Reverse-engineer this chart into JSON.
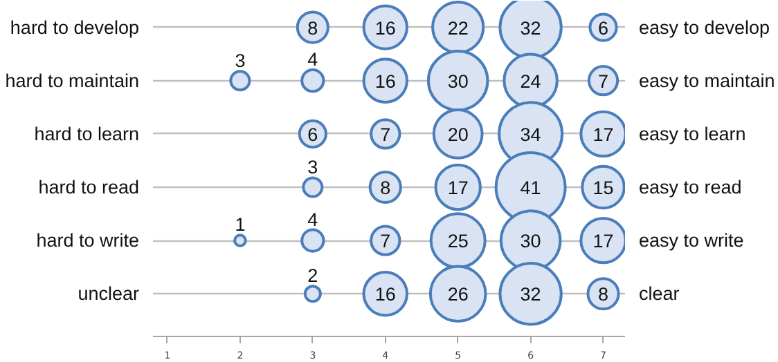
{
  "chart_data": {
    "type": "bubble",
    "orientation": "horizontal",
    "categories": [
      "hard to develop",
      "hard to maintain",
      "hard to learn",
      "hard to read",
      "hard to write",
      "unclear"
    ],
    "y2_categories": [
      "easy to develop",
      "easy to maintain",
      "easy to learn",
      "easy to read",
      "easy to write",
      "clear"
    ],
    "xlim": [
      0.8,
      7.3
    ],
    "xticks": [
      1,
      2,
      3,
      4,
      5,
      6,
      7
    ],
    "grid": "y",
    "color": "#dae3f3",
    "series": [
      {
        "values": [
          null,
          2,
          null,
          null,
          2,
          null
        ],
        "sizes": [
          null,
          3,
          null,
          null,
          1,
          null
        ],
        "value_labels": [
          null,
          "3",
          null,
          null,
          "1",
          null
        ]
      },
      {
        "values": [
          3,
          3,
          3,
          3,
          3,
          3
        ],
        "sizes": [
          8,
          4,
          6,
          3,
          4,
          2
        ],
        "value_labels": [
          "8",
          "4",
          "6",
          "3",
          "4",
          "2"
        ]
      },
      {
        "values": [
          4,
          4,
          4,
          4,
          4,
          4
        ],
        "sizes": [
          16,
          16,
          7,
          8,
          7,
          16
        ],
        "value_labels": [
          "16",
          "16",
          "7",
          "8",
          "7",
          "16"
        ]
      },
      {
        "values": [
          5,
          5,
          5,
          5,
          5,
          5
        ],
        "sizes": [
          22,
          30,
          20,
          17,
          25,
          26
        ],
        "value_labels": [
          "22",
          "30",
          "20",
          "17",
          "25",
          "26"
        ]
      },
      {
        "values": [
          6,
          6,
          6,
          6,
          6,
          6
        ],
        "sizes": [
          32,
          24,
          34,
          41,
          30,
          32
        ],
        "value_labels": [
          "32",
          "24",
          "34",
          "41",
          "30",
          "32"
        ]
      },
      {
        "values": [
          7,
          7,
          7,
          7,
          7,
          7
        ],
        "sizes": [
          6,
          7,
          17,
          15,
          17,
          8
        ],
        "value_labels": [
          "6",
          "7",
          "17",
          "15",
          "17",
          "8"
        ]
      }
    ]
  }
}
